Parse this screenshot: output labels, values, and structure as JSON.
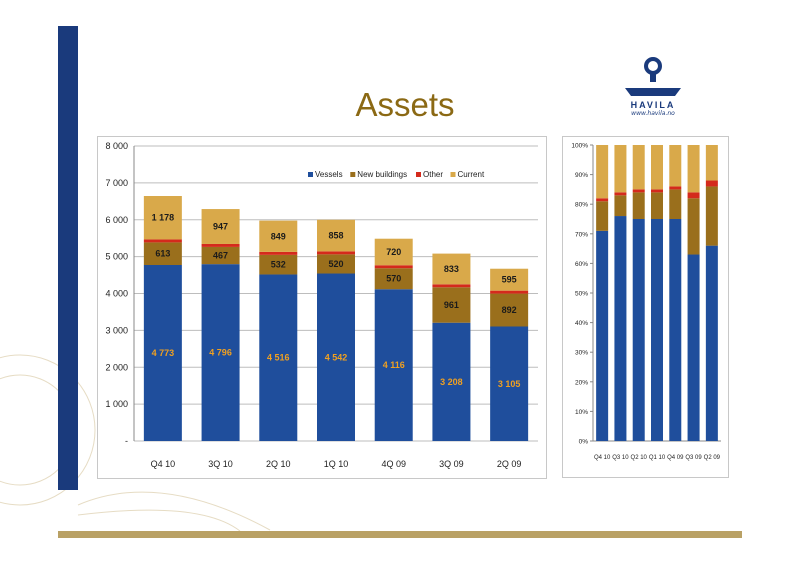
{
  "slide": {
    "title": "Assets",
    "logo_text": "HAVILA",
    "logo_url": "www.havila.no"
  },
  "colors": {
    "vessels": "#1f4e9c",
    "newbuildings": "#9a6f1c",
    "other": "#d42a1c",
    "current": "#d9a94a",
    "band": "#1a3a7c",
    "gold": "#b9a165"
  },
  "chart_data": [
    {
      "type": "bar",
      "stacked": true,
      "categories": [
        "Q4 10",
        "3Q 10",
        "2Q 10",
        "1Q 10",
        "4Q 09",
        "3Q 09",
        "2Q 09"
      ],
      "series": [
        {
          "name": "Vessels",
          "values": [
            4773,
            4796,
            4516,
            4542,
            4116,
            3208,
            3105
          ],
          "labels": [
            "4 773",
            "4 796",
            "4 516",
            "4 542",
            "4 116",
            "3 208",
            "3 105"
          ]
        },
        {
          "name": "New buildings",
          "values": [
            613,
            467,
            532,
            520,
            570,
            961,
            892
          ],
          "labels": [
            "613",
            "467",
            "532",
            "520",
            "570",
            "961",
            "892"
          ]
        },
        {
          "name": "Other",
          "values": [
            80,
            80,
            80,
            80,
            80,
            80,
            80
          ],
          "labels": []
        },
        {
          "name": "Current",
          "values": [
            1178,
            947,
            849,
            858,
            720,
            833,
            595
          ],
          "labels": [
            "1 178",
            "947",
            "849",
            "858",
            "720",
            "833",
            "595"
          ]
        }
      ],
      "ylim": [
        0,
        8000
      ],
      "yticks": [
        0,
        1000,
        2000,
        3000,
        4000,
        5000,
        6000,
        7000,
        8000
      ],
      "ytick_labels": [
        "-",
        "1 000",
        "2 000",
        "3 000",
        "4 000",
        "5 000",
        "6 000",
        "7 000",
        "8 000"
      ],
      "grid": true,
      "legend": "top-right"
    },
    {
      "type": "bar",
      "stacked": true,
      "percent": true,
      "categories": [
        "Q4 10",
        "Q3 10",
        "Q2 10",
        "Q1 10",
        "Q4 09",
        "Q3 09",
        "Q2 09"
      ],
      "series": [
        {
          "name": "Vessels",
          "values": [
            71,
            76,
            75,
            75,
            75,
            63,
            66
          ]
        },
        {
          "name": "New buildings",
          "values": [
            10,
            7,
            9,
            9,
            10,
            19,
            20
          ]
        },
        {
          "name": "Other",
          "values": [
            1,
            1,
            1,
            1,
            1,
            2,
            2
          ]
        },
        {
          "name": "Current",
          "values": [
            18,
            16,
            15,
            15,
            14,
            16,
            12
          ]
        }
      ],
      "ylim": [
        0,
        100
      ],
      "yticks": [
        0,
        10,
        20,
        30,
        40,
        50,
        60,
        70,
        80,
        90,
        100
      ],
      "ytick_labels": [
        "0%",
        "10%",
        "20%",
        "30%",
        "40%",
        "50%",
        "60%",
        "70%",
        "80%",
        "90%",
        "100%"
      ],
      "grid": false,
      "legend": "none"
    }
  ]
}
